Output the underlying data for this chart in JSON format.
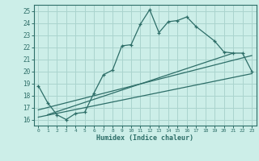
{
  "xlabel": "Humidex (Indice chaleur)",
  "bg_color": "#cceee8",
  "grid_color": "#aad4ce",
  "line_color": "#2d6e68",
  "xlim": [
    -0.5,
    23.5
  ],
  "ylim": [
    15.5,
    25.5
  ],
  "xticks": [
    0,
    1,
    2,
    3,
    4,
    5,
    6,
    7,
    8,
    9,
    10,
    11,
    12,
    13,
    14,
    15,
    16,
    17,
    18,
    19,
    20,
    21,
    22,
    23
  ],
  "yticks": [
    16,
    17,
    18,
    19,
    20,
    21,
    22,
    23,
    24,
    25
  ],
  "curve1_x": [
    0,
    1,
    2,
    3,
    4,
    5,
    6,
    7,
    8,
    9,
    10,
    11,
    12,
    13,
    14,
    15,
    16,
    17,
    19,
    20,
    21,
    22,
    23
  ],
  "curve1_y": [
    18.8,
    17.4,
    16.4,
    16.0,
    16.5,
    16.6,
    18.2,
    19.7,
    20.1,
    22.1,
    22.2,
    23.9,
    25.1,
    23.2,
    24.1,
    24.2,
    24.5,
    23.7,
    22.5,
    21.6,
    21.5,
    21.5,
    20.0
  ],
  "line2_x": [
    0,
    23
  ],
  "line2_y": [
    16.2,
    19.8
  ],
  "line3_x": [
    0,
    23
  ],
  "line3_y": [
    16.8,
    21.3
  ],
  "line4_x": [
    1,
    21
  ],
  "line4_y": [
    16.4,
    21.5
  ]
}
